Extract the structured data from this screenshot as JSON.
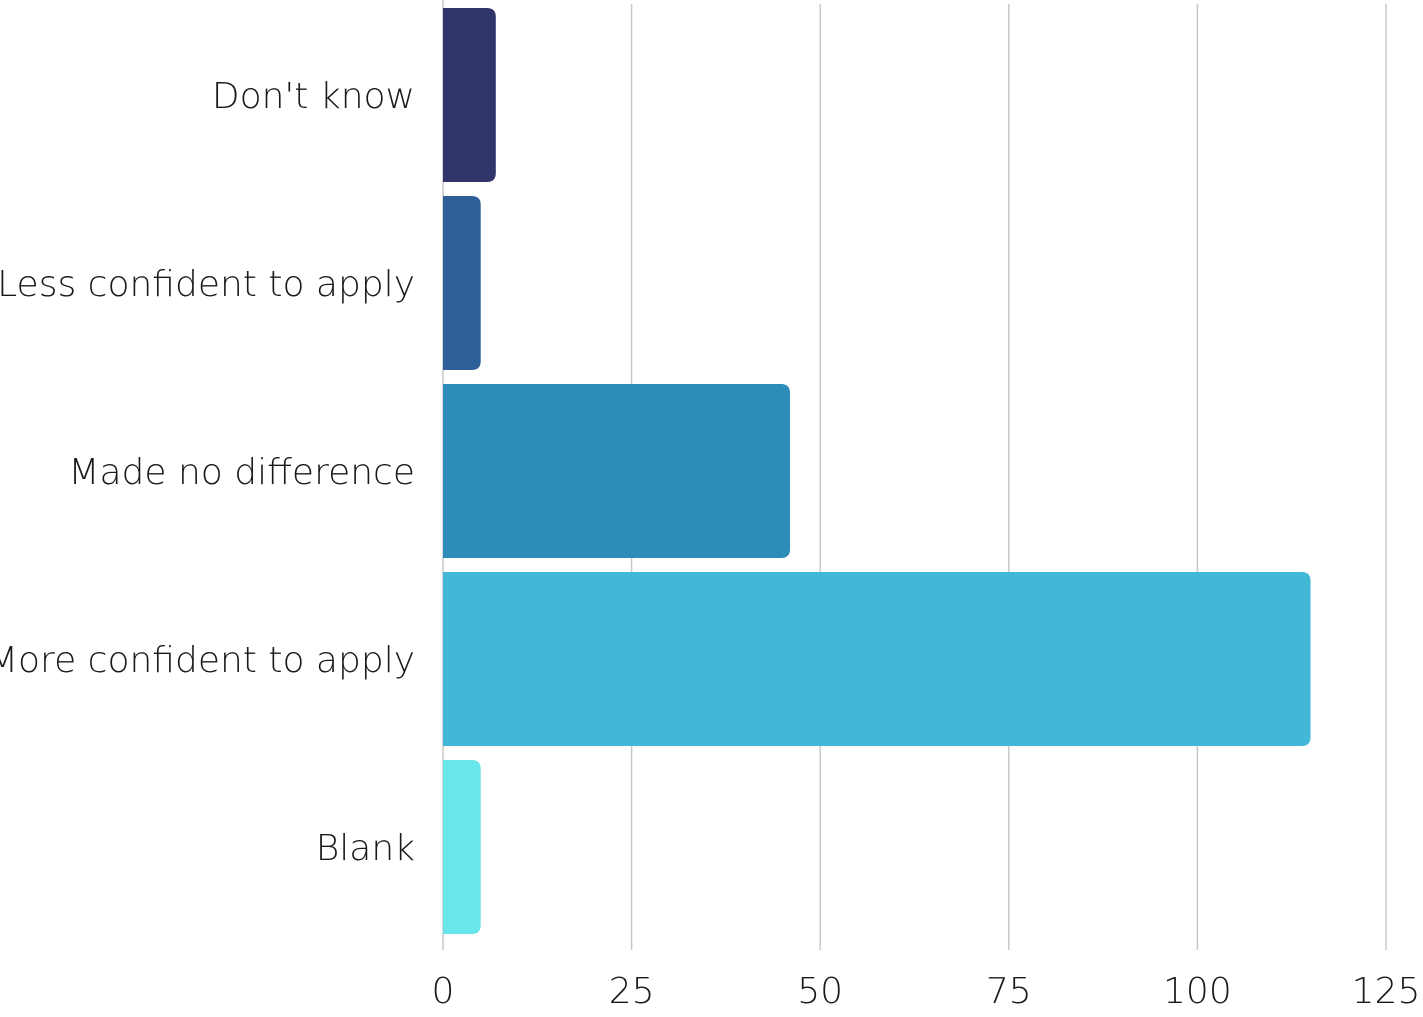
{
  "chart_data": {
    "type": "bar",
    "orientation": "horizontal",
    "title": "",
    "xlabel": "",
    "ylabel": "",
    "xlim": [
      0,
      125
    ],
    "x_ticks": [
      0,
      25,
      50,
      75,
      100,
      125
    ],
    "grid": true,
    "legend": "none",
    "categories": [
      "Don't know",
      "Less confident to apply",
      "Made no difference",
      "More confident to apply",
      "Blank"
    ],
    "values": [
      7,
      5,
      46,
      115,
      5
    ],
    "colors": [
      "#32356b",
      "#2e5f98",
      "#2d8cb9",
      "#42b7d6",
      "#69e6e9"
    ]
  }
}
